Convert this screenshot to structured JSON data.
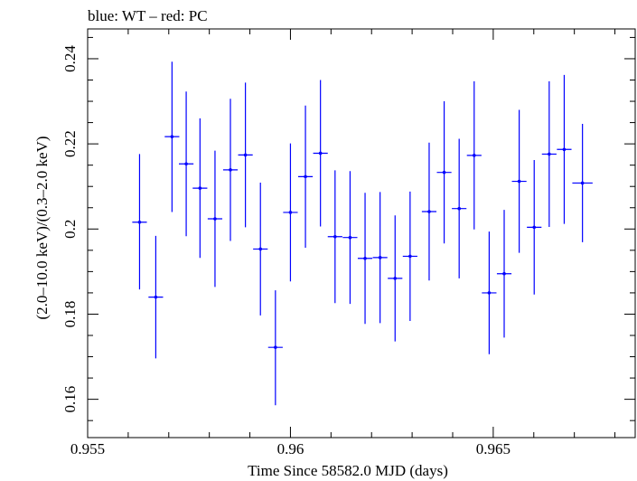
{
  "chart_data": {
    "type": "scatter",
    "title": "blue: WT – red: PC",
    "xlabel": "Time Since 58582.0 MJD (days)",
    "ylabel": "(2.0–10.0 keV)/(0.3–2.0 keV)",
    "xlim": [
      0.955,
      0.9685
    ],
    "ylim": [
      0.151,
      0.247
    ],
    "xticks": [
      0.955,
      0.96,
      0.965
    ],
    "xtick_labels": [
      "0.955",
      "0.96",
      "0.965"
    ],
    "yticks": [
      0.16,
      0.18,
      0.2,
      0.22,
      0.24
    ],
    "ytick_labels": [
      "0.16",
      "0.18",
      "0.2",
      "0.22",
      "0.24"
    ],
    "grid": false,
    "series": [
      {
        "name": "WT",
        "color": "#0000ff",
        "points": [
          {
            "x": 0.95628,
            "y": 0.2016,
            "xerr": 0.00018,
            "ylo": 0.1858,
            "yhi": 0.2176
          },
          {
            "x": 0.95668,
            "y": 0.184,
            "xerr": 0.00018,
            "ylo": 0.1696,
            "yhi": 0.1984
          },
          {
            "x": 0.95708,
            "y": 0.2217,
            "xerr": 0.00018,
            "ylo": 0.204,
            "yhi": 0.2393
          },
          {
            "x": 0.95743,
            "y": 0.2153,
            "xerr": 0.00018,
            "ylo": 0.1983,
            "yhi": 0.2323
          },
          {
            "x": 0.95777,
            "y": 0.2096,
            "xerr": 0.00018,
            "ylo": 0.1932,
            "yhi": 0.226
          },
          {
            "x": 0.95814,
            "y": 0.2024,
            "xerr": 0.00018,
            "ylo": 0.1864,
            "yhi": 0.2184
          },
          {
            "x": 0.95852,
            "y": 0.2139,
            "xerr": 0.00018,
            "ylo": 0.1972,
            "yhi": 0.2306
          },
          {
            "x": 0.95889,
            "y": 0.2174,
            "xerr": 0.00018,
            "ylo": 0.2004,
            "yhi": 0.2344
          },
          {
            "x": 0.95926,
            "y": 0.1953,
            "xerr": 0.00018,
            "ylo": 0.1797,
            "yhi": 0.2109
          },
          {
            "x": 0.95963,
            "y": 0.1722,
            "xerr": 0.00018,
            "ylo": 0.1586,
            "yhi": 0.1856
          },
          {
            "x": 0.96,
            "y": 0.2039,
            "xerr": 0.00018,
            "ylo": 0.1877,
            "yhi": 0.2201
          },
          {
            "x": 0.96037,
            "y": 0.2123,
            "xerr": 0.00018,
            "ylo": 0.1956,
            "yhi": 0.229
          },
          {
            "x": 0.96074,
            "y": 0.2178,
            "xerr": 0.00018,
            "ylo": 0.2006,
            "yhi": 0.235
          },
          {
            "x": 0.9611,
            "y": 0.1982,
            "xerr": 0.00018,
            "ylo": 0.1826,
            "yhi": 0.2138
          },
          {
            "x": 0.96147,
            "y": 0.198,
            "xerr": 0.00018,
            "ylo": 0.1824,
            "yhi": 0.2136
          },
          {
            "x": 0.96184,
            "y": 0.1931,
            "xerr": 0.00018,
            "ylo": 0.1777,
            "yhi": 0.2085
          },
          {
            "x": 0.96221,
            "y": 0.1933,
            "xerr": 0.00018,
            "ylo": 0.1779,
            "yhi": 0.2087
          },
          {
            "x": 0.96258,
            "y": 0.1884,
            "xerr": 0.00018,
            "ylo": 0.1736,
            "yhi": 0.2032
          },
          {
            "x": 0.96295,
            "y": 0.1936,
            "xerr": 0.00018,
            "ylo": 0.1784,
            "yhi": 0.2088
          },
          {
            "x": 0.96342,
            "y": 0.2041,
            "xerr": 0.00018,
            "ylo": 0.1879,
            "yhi": 0.2203
          },
          {
            "x": 0.96379,
            "y": 0.2133,
            "xerr": 0.00018,
            "ylo": 0.1966,
            "yhi": 0.23
          },
          {
            "x": 0.96416,
            "y": 0.2048,
            "xerr": 0.00018,
            "ylo": 0.1884,
            "yhi": 0.2212
          },
          {
            "x": 0.96453,
            "y": 0.2173,
            "xerr": 0.00018,
            "ylo": 0.1999,
            "yhi": 0.2347
          },
          {
            "x": 0.9649,
            "y": 0.185,
            "xerr": 0.00018,
            "ylo": 0.1706,
            "yhi": 0.1994
          },
          {
            "x": 0.96527,
            "y": 0.1895,
            "xerr": 0.00018,
            "ylo": 0.1745,
            "yhi": 0.2045
          },
          {
            "x": 0.96564,
            "y": 0.2112,
            "xerr": 0.00018,
            "ylo": 0.1944,
            "yhi": 0.228
          },
          {
            "x": 0.96601,
            "y": 0.2004,
            "xerr": 0.00018,
            "ylo": 0.1846,
            "yhi": 0.2162
          },
          {
            "x": 0.96638,
            "y": 0.2176,
            "xerr": 0.00018,
            "ylo": 0.2005,
            "yhi": 0.2347
          },
          {
            "x": 0.96675,
            "y": 0.2187,
            "xerr": 0.00018,
            "ylo": 0.2012,
            "yhi": 0.2362
          },
          {
            "x": 0.9672,
            "y": 0.2108,
            "xerr": 0.00025,
            "ylo": 0.1969,
            "yhi": 0.2247
          }
        ]
      }
    ]
  }
}
